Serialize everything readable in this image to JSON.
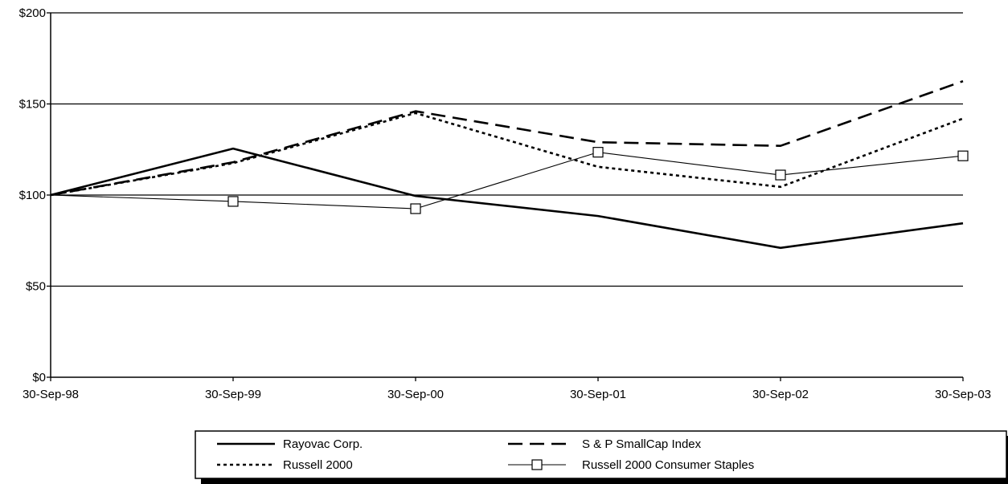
{
  "chart_data": {
    "type": "line",
    "title": "",
    "xlabel": "",
    "ylabel": "",
    "categories": [
      "30-Sep-98",
      "30-Sep-99",
      "30-Sep-00",
      "30-Sep-01",
      "30-Sep-02",
      "30-Sep-03"
    ],
    "ylim": [
      0,
      200
    ],
    "yticks": [
      0,
      50,
      100,
      150,
      200
    ],
    "ytick_labels": [
      "$0",
      "$50",
      "$100",
      "$150",
      "$200"
    ],
    "grid": true,
    "legend_position": "bottom",
    "series": [
      {
        "name": "Rayovac Corp.",
        "style": "solid-thick",
        "color": "#000000",
        "values": [
          100,
          125.5,
          99.5,
          88.5,
          71,
          84.5
        ]
      },
      {
        "name": "S & P SmallCap Index",
        "style": "long-dash",
        "color": "#000000",
        "values": [
          100,
          118,
          146,
          129,
          127,
          162.5
        ]
      },
      {
        "name": "Russell 2000",
        "style": "dotted",
        "color": "#000000",
        "values": [
          100,
          117.5,
          145,
          115.5,
          104.5,
          142
        ]
      },
      {
        "name": "Russell 2000 Consumer Staples",
        "style": "thin-square-markers",
        "color": "#000000",
        "values": [
          100,
          96.5,
          92.5,
          123.5,
          111,
          121.5
        ]
      }
    ]
  }
}
